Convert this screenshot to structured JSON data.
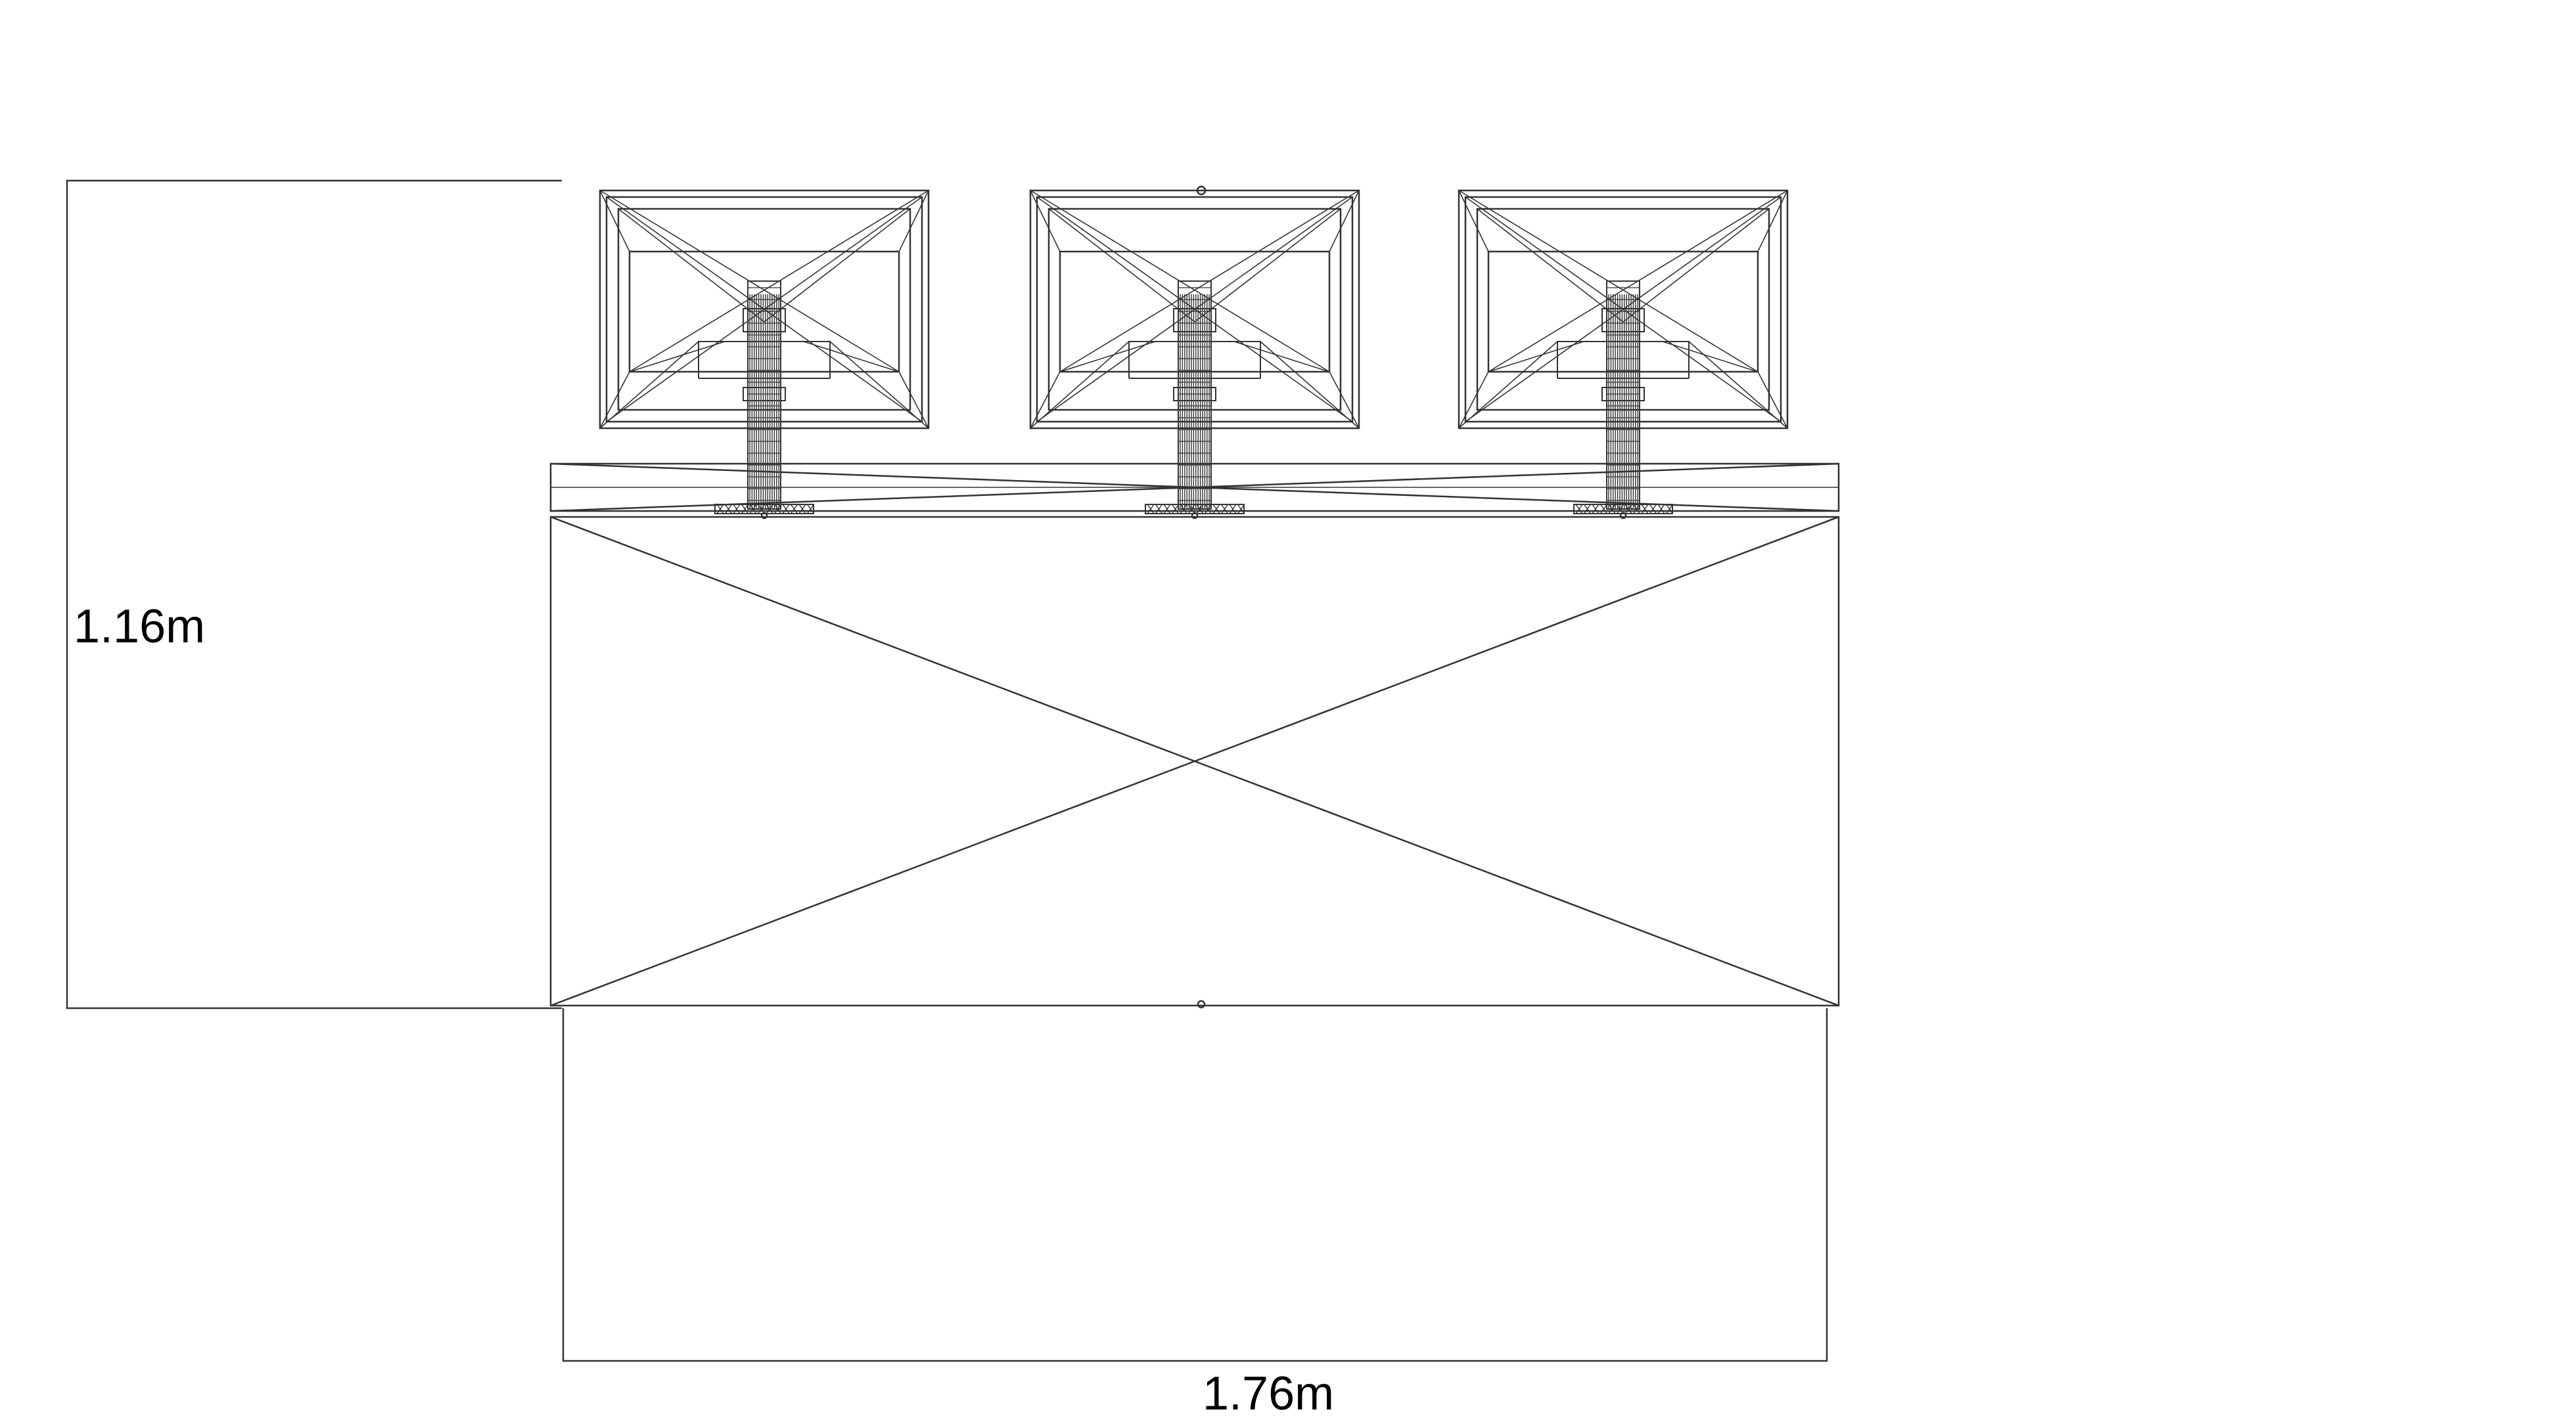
{
  "dimensions": {
    "height_label": "1.16m",
    "width_label": "1.76m"
  },
  "drawing": {
    "style": "wireframe",
    "line_color": "#333333",
    "background": "#ffffff",
    "objects": [
      "desk",
      "monitor-left",
      "monitor-center",
      "monitor-right"
    ]
  }
}
